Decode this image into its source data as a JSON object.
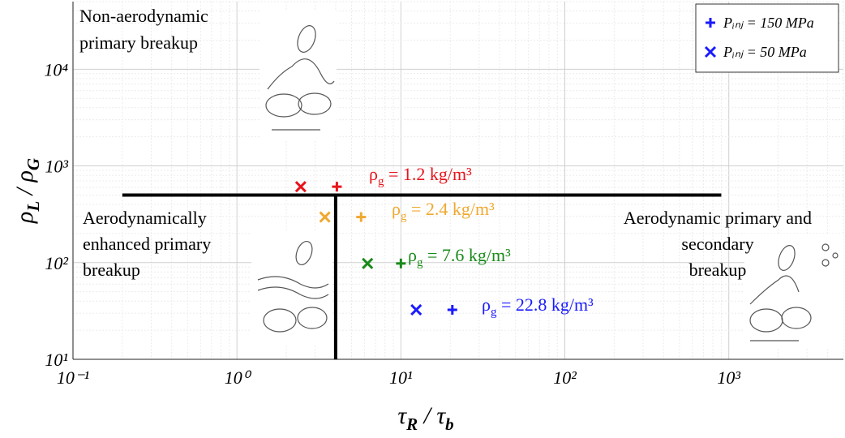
{
  "chart_data": {
    "type": "scatter",
    "xlabel": [
      {
        "text": "τ"
      },
      {
        "text": "R",
        "sub": true
      },
      {
        "text": " / τ"
      },
      {
        "text": "b",
        "sub": true
      }
    ],
    "ylabel": [
      {
        "text": "ρ"
      },
      {
        "text": "L",
        "sub": true
      },
      {
        "text": " / ρ"
      },
      {
        "text": "G",
        "sub": true
      }
    ],
    "log_x": true,
    "log_y": true,
    "grid": true,
    "legend": "upper right",
    "xlim": [
      0.1,
      5000
    ],
    "ylim": [
      10,
      50000
    ],
    "xticks": [
      {
        "value": 0.1,
        "label": "10⁻¹"
      },
      {
        "value": 1,
        "label": "10⁰"
      },
      {
        "value": 10,
        "label": "10¹"
      },
      {
        "value": 100,
        "label": "10²"
      },
      {
        "value": 1000,
        "label": "10³"
      }
    ],
    "yticks": [
      {
        "value": 10,
        "label": "10¹"
      },
      {
        "value": 100,
        "label": "10²"
      },
      {
        "value": 1000,
        "label": "10³"
      },
      {
        "value": 10000,
        "label": "10⁴"
      }
    ],
    "series": [
      {
        "name": "Pᵢₙⱼ = 150 MPa",
        "marker": "+",
        "color": "#1a1aff",
        "x": [
          4.07,
          5.72,
          10,
          20.6
        ],
        "y": [
          610,
          296,
          98,
          32.5
        ],
        "colors": [
          "#e8141c",
          "#f0a830",
          "#1a8a1a",
          "#1a1aff"
        ]
      },
      {
        "name": "Pᵢₙⱼ = 50 MPa",
        "marker": "x",
        "color": "#1a1aff",
        "x": [
          2.45,
          3.44,
          6.26,
          12.4
        ],
        "y": [
          610,
          296,
          98,
          32.5
        ],
        "colors": [
          "#e8141c",
          "#f0a830",
          "#1a8a1a",
          "#1a1aff"
        ]
      }
    ],
    "boundaries": [
      {
        "x": [
          0.2,
          900
        ],
        "y": [
          500,
          500
        ]
      },
      {
        "x": [
          4,
          4
        ],
        "y": [
          10,
          500
        ]
      }
    ],
    "annotations": [
      {
        "symbol": "ρ",
        "sub": "g",
        "text": " = 1.2 kg/m³",
        "color": "#e8141c"
      },
      {
        "symbol": "ρ",
        "sub": "g",
        "text": " = 2.4 kg/m³",
        "color": "#f0a830"
      },
      {
        "symbol": "ρ",
        "sub": "g",
        "text": " = 7.6 kg/m³",
        "color": "#1a8a1a"
      },
      {
        "symbol": "ρ",
        "sub": "g",
        "text": " = 22.8 kg/m³",
        "color": "#1a1aff"
      }
    ],
    "regions": [
      [
        "Non-aerodynamic",
        "primary breakup"
      ],
      [
        "Aerodynamically",
        "enhanced primary",
        "breakup"
      ],
      [
        "Aerodynamic primary and",
        "secondary",
        "breakup"
      ]
    ]
  }
}
